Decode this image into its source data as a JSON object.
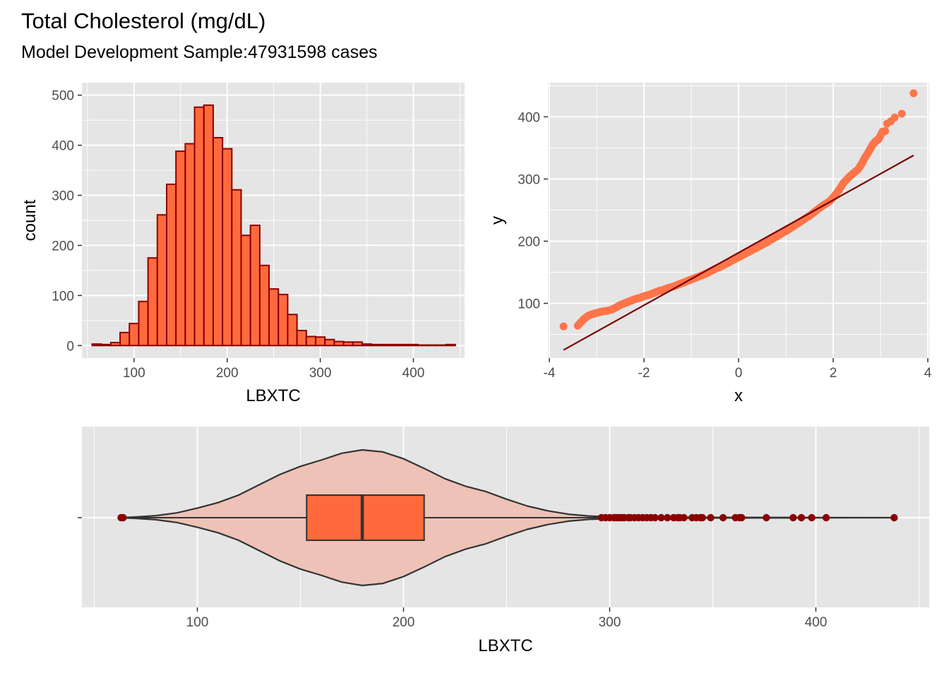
{
  "header": {
    "title": "Total Cholesterol (mg/dL)",
    "subtitle": "Model Development Sample:47931598 cases"
  },
  "colors": {
    "panel_bg": "#e5e5e5",
    "grid": "#ffffff",
    "fill": "#ff6a3d",
    "outline": "#8b0000",
    "qq_points": "#ff7449",
    "qq_line": "#7a0000",
    "violin_fill": "#eec2b6",
    "outliers": "#8b0000",
    "dark_line": "#333333"
  },
  "chart_data": [
    {
      "type": "bar",
      "subtype": "histogram",
      "xlabel": "LBXTC",
      "ylabel": "count",
      "xlim": [
        44,
        455
      ],
      "ylim": [
        -25,
        525
      ],
      "x_ticks": [
        100,
        200,
        300,
        400
      ],
      "y_ticks": [
        0,
        100,
        200,
        300,
        400,
        500
      ],
      "bins": [
        {
          "x0": 55,
          "x1": 65,
          "count": 3
        },
        {
          "x0": 65,
          "x1": 75,
          "count": 2
        },
        {
          "x0": 75,
          "x1": 85,
          "count": 6
        },
        {
          "x0": 85,
          "x1": 95,
          "count": 26
        },
        {
          "x0": 95,
          "x1": 105,
          "count": 44
        },
        {
          "x0": 105,
          "x1": 115,
          "count": 88
        },
        {
          "x0": 115,
          "x1": 125,
          "count": 175
        },
        {
          "x0": 125,
          "x1": 135,
          "count": 261
        },
        {
          "x0": 135,
          "x1": 145,
          "count": 322
        },
        {
          "x0": 145,
          "x1": 155,
          "count": 388
        },
        {
          "x0": 155,
          "x1": 165,
          "count": 403
        },
        {
          "x0": 165,
          "x1": 175,
          "count": 476
        },
        {
          "x0": 175,
          "x1": 185,
          "count": 480
        },
        {
          "x0": 185,
          "x1": 195,
          "count": 415
        },
        {
          "x0": 195,
          "x1": 205,
          "count": 393
        },
        {
          "x0": 205,
          "x1": 215,
          "count": 311
        },
        {
          "x0": 215,
          "x1": 225,
          "count": 220
        },
        {
          "x0": 225,
          "x1": 235,
          "count": 240
        },
        {
          "x0": 235,
          "x1": 245,
          "count": 160
        },
        {
          "x0": 245,
          "x1": 255,
          "count": 113
        },
        {
          "x0": 255,
          "x1": 265,
          "count": 102
        },
        {
          "x0": 265,
          "x1": 275,
          "count": 62
        },
        {
          "x0": 275,
          "x1": 285,
          "count": 30
        },
        {
          "x0": 285,
          "x1": 295,
          "count": 18
        },
        {
          "x0": 295,
          "x1": 305,
          "count": 17
        },
        {
          "x0": 305,
          "x1": 315,
          "count": 12
        },
        {
          "x0": 315,
          "x1": 325,
          "count": 8
        },
        {
          "x0": 325,
          "x1": 335,
          "count": 7
        },
        {
          "x0": 335,
          "x1": 345,
          "count": 7
        },
        {
          "x0": 345,
          "x1": 355,
          "count": 3
        },
        {
          "x0": 355,
          "x1": 365,
          "count": 2
        },
        {
          "x0": 365,
          "x1": 375,
          "count": 2
        },
        {
          "x0": 375,
          "x1": 385,
          "count": 2
        },
        {
          "x0": 385,
          "x1": 395,
          "count": 2
        },
        {
          "x0": 395,
          "x1": 405,
          "count": 2
        },
        {
          "x0": 405,
          "x1": 415,
          "count": 1
        },
        {
          "x0": 415,
          "x1": 425,
          "count": 1
        },
        {
          "x0": 425,
          "x1": 435,
          "count": 1
        },
        {
          "x0": 435,
          "x1": 445,
          "count": 2
        }
      ]
    },
    {
      "type": "scatter",
      "subtype": "qq-plot",
      "xlabel": "x",
      "ylabel": "y",
      "xlim": [
        -4.03,
        4.03
      ],
      "ylim": [
        12,
        455
      ],
      "x_ticks": [
        -4,
        -2,
        0,
        2,
        4
      ],
      "y_ticks": [
        100,
        200,
        300,
        400
      ],
      "reference_line": {
        "x": [
          -3.7,
          3.7
        ],
        "y": [
          25,
          338
        ]
      },
      "points": [
        [
          -3.7,
          63
        ],
        [
          -3.4,
          64
        ],
        [
          -3.28,
          74
        ],
        [
          -3.18,
          80
        ],
        [
          -3.08,
          83
        ],
        [
          -2.98,
          85
        ],
        [
          -2.88,
          87
        ],
        [
          -2.78,
          88
        ],
        [
          -2.68,
          90
        ],
        [
          -2.58,
          94
        ],
        [
          -2.48,
          98
        ],
        [
          -2.38,
          101
        ],
        [
          -2.28,
          104
        ],
        [
          -2.18,
          107
        ],
        [
          -2.08,
          109
        ],
        [
          -1.98,
          112
        ],
        [
          -1.88,
          114
        ],
        [
          -1.78,
          117
        ],
        [
          -1.68,
          120
        ],
        [
          -1.58,
          122
        ],
        [
          -1.48,
          125
        ],
        [
          -1.38,
          127
        ],
        [
          -1.28,
          130
        ],
        [
          -1.18,
          133
        ],
        [
          -1.08,
          136
        ],
        [
          -0.98,
          139
        ],
        [
          -0.88,
          142
        ],
        [
          -0.78,
          145
        ],
        [
          -0.68,
          148
        ],
        [
          -0.58,
          152
        ],
        [
          -0.48,
          156
        ],
        [
          -0.38,
          159
        ],
        [
          -0.28,
          163
        ],
        [
          -0.18,
          167
        ],
        [
          -0.08,
          171
        ],
        [
          0.02,
          175
        ],
        [
          0.12,
          179
        ],
        [
          0.22,
          183
        ],
        [
          0.32,
          187
        ],
        [
          0.42,
          191
        ],
        [
          0.52,
          195
        ],
        [
          0.62,
          199
        ],
        [
          0.72,
          204
        ],
        [
          0.82,
          208
        ],
        [
          0.92,
          213
        ],
        [
          1.02,
          217
        ],
        [
          1.12,
          222
        ],
        [
          1.22,
          227
        ],
        [
          1.32,
          232
        ],
        [
          1.42,
          237
        ],
        [
          1.52,
          242
        ],
        [
          1.62,
          248
        ],
        [
          1.72,
          254
        ],
        [
          1.82,
          259
        ],
        [
          1.92,
          264
        ],
        [
          2.02,
          272
        ],
        [
          2.12,
          282
        ],
        [
          2.22,
          294
        ],
        [
          2.32,
          302
        ],
        [
          2.42,
          309
        ],
        [
          2.52,
          315
        ],
        [
          2.6,
          324
        ],
        [
          2.66,
          333
        ],
        [
          2.72,
          340
        ],
        [
          2.78,
          348
        ],
        [
          2.84,
          356
        ],
        [
          2.9,
          361
        ],
        [
          2.96,
          364
        ],
        [
          3.04,
          376
        ],
        [
          3.1,
          377
        ],
        [
          3.14,
          389
        ],
        [
          3.22,
          393
        ],
        [
          3.3,
          399
        ],
        [
          3.45,
          405
        ],
        [
          3.7,
          438
        ]
      ]
    },
    {
      "type": "box",
      "subtype": "violin-box-plot",
      "xlabel": "LBXTC",
      "xlim": [
        44,
        455
      ],
      "x_ticks": [
        100,
        200,
        300,
        400
      ],
      "y_tick_labels": [
        ""
      ],
      "box": {
        "min": 63,
        "q1": 153,
        "median": 180,
        "q3": 210,
        "whisker_low": 65,
        "whisker_high": 295
      },
      "violin_density": [
        [
          63,
          0.0
        ],
        [
          70,
          0.01
        ],
        [
          80,
          0.03
        ],
        [
          90,
          0.07
        ],
        [
          100,
          0.14
        ],
        [
          110,
          0.22
        ],
        [
          120,
          0.33
        ],
        [
          130,
          0.48
        ],
        [
          140,
          0.63
        ],
        [
          150,
          0.75
        ],
        [
          160,
          0.84
        ],
        [
          170,
          0.94
        ],
        [
          180,
          0.99
        ],
        [
          190,
          0.96
        ],
        [
          200,
          0.86
        ],
        [
          210,
          0.72
        ],
        [
          220,
          0.57
        ],
        [
          230,
          0.46
        ],
        [
          240,
          0.38
        ],
        [
          250,
          0.27
        ],
        [
          260,
          0.17
        ],
        [
          270,
          0.1
        ],
        [
          280,
          0.05
        ],
        [
          290,
          0.025
        ],
        [
          300,
          0.013
        ],
        [
          320,
          0.007
        ],
        [
          350,
          0.004
        ],
        [
          400,
          0.002
        ],
        [
          438,
          0.0
        ]
      ],
      "outliers": [
        63,
        64,
        296,
        298,
        300,
        302,
        303,
        304,
        305,
        306,
        307,
        309,
        310,
        312,
        314,
        316,
        318,
        320,
        322,
        325,
        328,
        331,
        333,
        334,
        336,
        340,
        342,
        344,
        345,
        349,
        355,
        361,
        363,
        364,
        376,
        389,
        393,
        398,
        405,
        438
      ]
    }
  ]
}
